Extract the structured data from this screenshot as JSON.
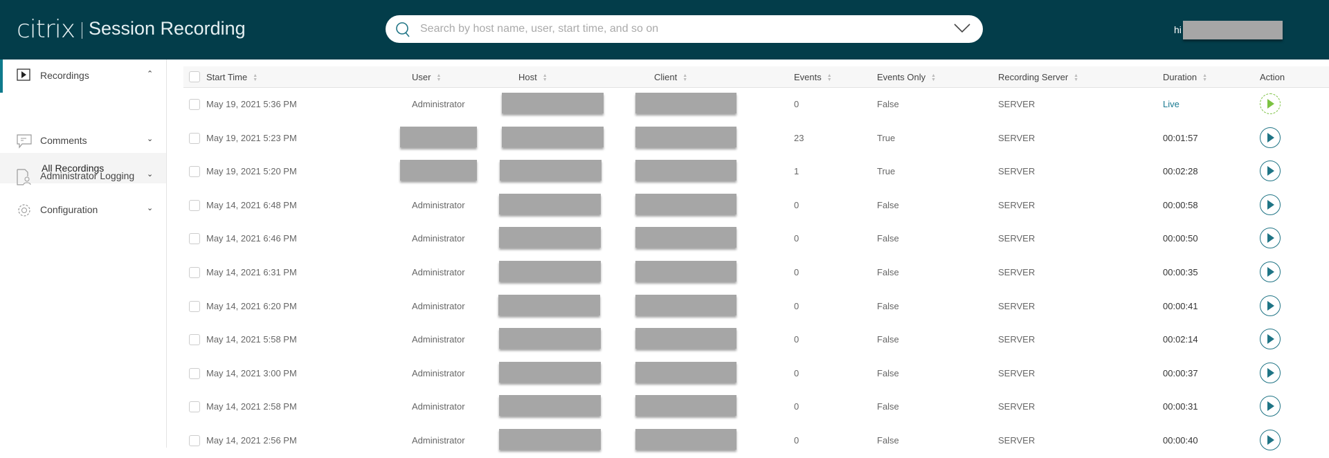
{
  "header": {
    "logo": "citrix",
    "product": "Session Recording",
    "search_placeholder": "Search by host name, user, start time, and so on",
    "greeting": "hi"
  },
  "sidebar": {
    "items": [
      {
        "label": "Recordings",
        "icon": "play-box-icon",
        "expanded": true
      },
      {
        "label": "Comments",
        "icon": "comment-icon",
        "expanded": false
      },
      {
        "label": "Administrator Logging",
        "icon": "log-user-icon",
        "expanded": false
      },
      {
        "label": "Configuration",
        "icon": "gear-icon",
        "expanded": false
      }
    ],
    "sub_item": "All Recordings"
  },
  "table": {
    "columns": [
      "Start Time",
      "User",
      "Host",
      "Client",
      "Events",
      "Events Only",
      "Recording Server",
      "Duration",
      "Action"
    ],
    "rows": [
      {
        "start": "May 19, 2021 5:36 PM",
        "user": "Administrator",
        "events": "0",
        "events_only": "False",
        "server": "SERVER",
        "duration": "Live"
      },
      {
        "start": "May 19, 2021 5:23 PM",
        "user": null,
        "events": "23",
        "events_only": "True",
        "server": "SERVER",
        "duration": "00:01:57"
      },
      {
        "start": "May 19, 2021 5:20 PM",
        "user": null,
        "events": "1",
        "events_only": "True",
        "server": "SERVER",
        "duration": "00:02:28"
      },
      {
        "start": "May 14, 2021 6:48 PM",
        "user": "Administrator",
        "events": "0",
        "events_only": "False",
        "server": "SERVER",
        "duration": "00:00:58"
      },
      {
        "start": "May 14, 2021 6:46 PM",
        "user": "Administrator",
        "events": "0",
        "events_only": "False",
        "server": "SERVER",
        "duration": "00:00:50"
      },
      {
        "start": "May 14, 2021 6:31 PM",
        "user": "Administrator",
        "events": "0",
        "events_only": "False",
        "server": "SERVER",
        "duration": "00:00:35"
      },
      {
        "start": "May 14, 2021 6:20 PM",
        "user": "Administrator",
        "events": "0",
        "events_only": "False",
        "server": "SERVER",
        "duration": "00:00:41"
      },
      {
        "start": "May 14, 2021 5:58 PM",
        "user": "Administrator",
        "events": "0",
        "events_only": "False",
        "server": "SERVER",
        "duration": "00:02:14"
      },
      {
        "start": "May 14, 2021 3:00 PM",
        "user": "Administrator",
        "events": "0",
        "events_only": "False",
        "server": "SERVER",
        "duration": "00:00:37"
      },
      {
        "start": "May 14, 2021 2:58 PM",
        "user": "Administrator",
        "events": "0",
        "events_only": "False",
        "server": "SERVER",
        "duration": "00:00:31"
      },
      {
        "start": "May 14, 2021 2:56 PM",
        "user": "Administrator",
        "events": "0",
        "events_only": "False",
        "server": "SERVER",
        "duration": "00:00:40"
      }
    ]
  },
  "colors": {
    "header": "#033d4a",
    "accent": "#1f7485",
    "live": "#7cc242"
  }
}
